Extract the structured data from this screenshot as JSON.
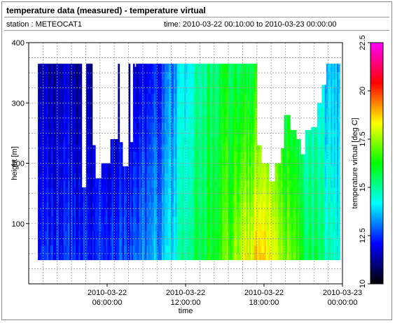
{
  "header": {
    "title": "temperature data (measured) - temperature virtual",
    "station": "station : METEOCAT1",
    "timerange": "time: 2010-03-22 00:10:00 to 2010-03-23 00:00:00"
  },
  "chart_data": {
    "type": "heatmap",
    "xlabel": "time",
    "ylabel": "height [m]",
    "colorbar_label": "temperature virtual [deg C]",
    "xlim": [
      0,
      24
    ],
    "ylim": [
      0,
      400
    ],
    "grid": true,
    "x_ticks": [
      {
        "value": 6,
        "label_date": "2010-03-22",
        "label_time": "06:00:00"
      },
      {
        "value": 12,
        "label_date": "2010-03-22",
        "label_time": "12:00:00"
      },
      {
        "value": 18,
        "label_date": "2010-03-22",
        "label_time": "18:00:00"
      },
      {
        "value": 24,
        "label_date": "2010-03-23",
        "label_time": "00:00:00"
      }
    ],
    "y_ticks": [
      100,
      200,
      300,
      400
    ],
    "color_scale": {
      "min": 10,
      "max": 22.5,
      "ticks": [
        "10",
        "12.5",
        "15",
        "17.5",
        "20",
        "22.5"
      ],
      "stops": [
        "#000000",
        "#0000ff",
        "#00ffff",
        "#00ff00",
        "#ffff00",
        "#ff0000",
        "#ff00ff"
      ]
    },
    "height_range_m": [
      40,
      365
    ],
    "profiles_top_height_m": [
      365,
      365,
      365,
      365,
      365,
      365,
      365,
      365,
      365,
      365,
      365,
      365,
      220,
      200,
      330,
      365,
      365,
      365,
      160,
      225,
      365,
      365,
      365,
      365,
      365,
      210,
      260,
      190,
      365,
      365,
      365,
      365,
      365,
      365,
      365,
      365,
      365,
      365,
      365,
      365,
      365,
      365,
      365,
      365,
      365,
      365,
      365,
      365,
      365,
      365,
      365,
      365,
      365,
      365,
      365,
      365,
      365,
      365,
      365,
      365,
      365,
      365,
      365,
      365,
      365,
      365,
      365,
      365,
      365,
      365,
      365,
      365,
      365,
      365,
      365,
      365,
      365,
      365,
      365,
      365,
      365,
      365,
      365,
      365,
      365,
      365,
      365,
      365,
      365,
      365,
      365,
      365,
      365,
      365,
      365,
      365,
      365,
      365,
      365,
      365,
      365,
      365,
      365,
      365,
      365,
      365,
      365,
      365,
      365,
      365,
      365,
      365,
      365,
      365,
      365,
      365,
      365,
      365,
      365,
      365,
      365,
      365,
      365,
      365,
      365,
      365,
      365,
      365,
      365,
      365,
      365,
      365,
      365,
      365,
      365,
      365,
      365,
      365,
      365,
      365,
      365,
      365,
      365,
      365,
      365,
      365,
      365,
      365,
      365,
      365,
      365,
      365,
      365,
      365,
      365,
      365,
      365,
      365,
      365,
      365,
      365,
      365,
      365,
      365,
      365,
      365,
      365,
      365,
      365,
      365,
      365,
      365,
      365,
      365,
      365,
      365,
      365,
      365,
      365,
      365,
      365,
      365,
      365,
      365,
      365,
      365,
      365,
      365,
      365,
      365,
      365,
      365,
      365,
      365,
      365,
      365,
      365,
      365,
      365,
      365
    ],
    "gap_profiles": [
      {
        "from_h": 3.95,
        "to_h": 4.35,
        "top_m": 160
      },
      {
        "from_h": 4.75,
        "to_h": 5.05,
        "top_m": 230
      },
      {
        "from_h": 5.05,
        "to_h": 5.45,
        "top_m": 175
      },
      {
        "from_h": 5.45,
        "to_h": 6.15,
        "top_m": 200
      },
      {
        "from_h": 6.15,
        "to_h": 6.75,
        "top_m": 240
      },
      {
        "from_h": 6.9,
        "to_h": 7.15,
        "top_m": 235
      },
      {
        "from_h": 7.15,
        "to_h": 7.55,
        "top_m": 195
      },
      {
        "from_h": 7.7,
        "to_h": 7.95,
        "top_m": 235
      },
      {
        "from_h": 8.0,
        "to_h": 8.15,
        "top_m": 360
      },
      {
        "from_h": 17.35,
        "to_h": 17.75,
        "top_m": 230
      },
      {
        "from_h": 17.75,
        "to_h": 18.3,
        "top_m": 200
      },
      {
        "from_h": 18.3,
        "to_h": 18.75,
        "top_m": 170
      },
      {
        "from_h": 18.75,
        "to_h": 19.25,
        "top_m": 200
      },
      {
        "from_h": 19.25,
        "to_h": 19.5,
        "top_m": 225
      },
      {
        "from_h": 19.5,
        "to_h": 19.9,
        "top_m": 280
      },
      {
        "from_h": 19.9,
        "to_h": 20.4,
        "top_m": 255
      },
      {
        "from_h": 20.4,
        "to_h": 20.75,
        "top_m": 240
      },
      {
        "from_h": 20.75,
        "to_h": 21.05,
        "top_m": 215
      },
      {
        "from_h": 21.05,
        "to_h": 21.6,
        "top_m": 255
      },
      {
        "from_h": 21.6,
        "to_h": 22.0,
        "top_m": 260
      },
      {
        "from_h": 22.0,
        "to_h": 22.4,
        "top_m": 300
      },
      {
        "from_h": 22.4,
        "to_h": 22.75,
        "top_m": 330
      }
    ],
    "temperature_by_hour": {
      "hours": [
        0.5,
        1.5,
        2.5,
        3.5,
        4.5,
        5.5,
        6.5,
        7.5,
        8.5,
        9.5,
        10.5,
        11.5,
        12.5,
        13.5,
        14.5,
        15.5,
        16.5,
        17.5,
        18.5,
        19.5,
        20.5,
        21.5,
        22.5,
        23.5
      ],
      "near_surface_deg_c": [
        12.0,
        12.5,
        12.3,
        12.6,
        12.2,
        12.4,
        12.6,
        12.8,
        13.0,
        13.3,
        13.8,
        14.5,
        15.4,
        16.0,
        16.5,
        17.2,
        18.0,
        18.7,
        18.5,
        17.5,
        16.5,
        15.6,
        15.0,
        14.4
      ],
      "top_deg_c": [
        11.2,
        11.4,
        11.5,
        11.3,
        11.3,
        11.6,
        11.2,
        11.4,
        11.7,
        12.0,
        12.8,
        13.6,
        14.4,
        15.3,
        15.6,
        15.8,
        15.4,
        16.2,
        16.8,
        15.5,
        14.8,
        14.4,
        13.6,
        13.4
      ]
    }
  }
}
